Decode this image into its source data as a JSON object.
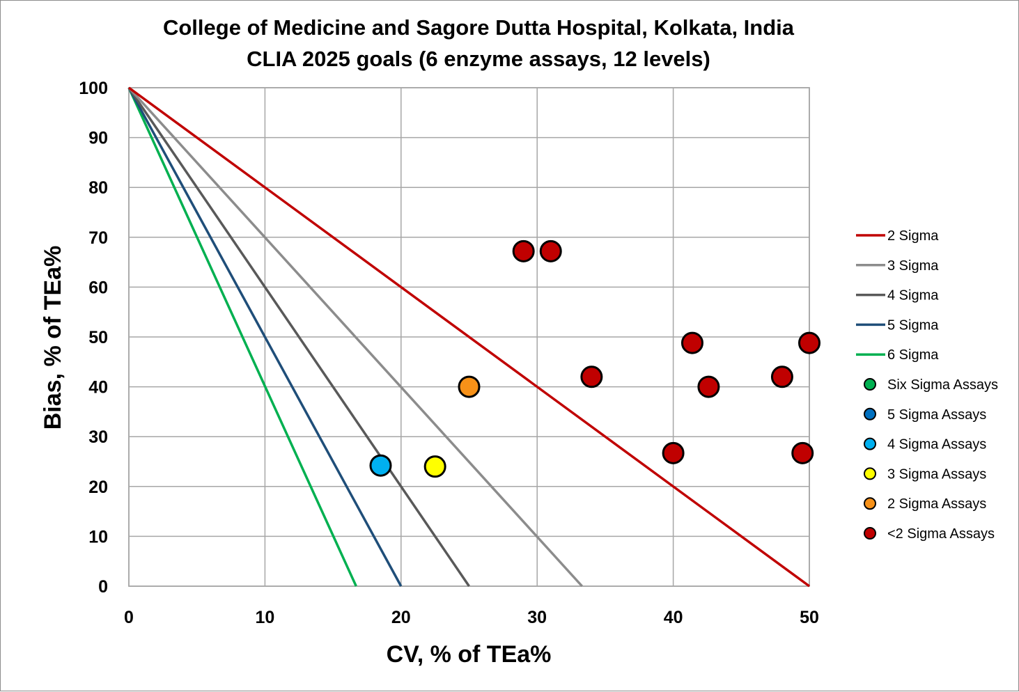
{
  "chart_data": {
    "type": "scatter",
    "title": "College of Medicine and Sagore Dutta Hospital, Kolkata, India",
    "subtitle": "CLIA 2025 goals (6 enzyme assays, 12 levels)",
    "xlabel": "CV, % of TEa%",
    "ylabel": "Bias, % of TEa%",
    "xlim": [
      0,
      50
    ],
    "ylim": [
      0,
      100
    ],
    "xticks": [
      0,
      10,
      20,
      30,
      40,
      50
    ],
    "yticks": [
      0,
      10,
      20,
      30,
      40,
      50,
      60,
      70,
      80,
      90,
      100
    ],
    "grid": true,
    "legend_position": "right",
    "lines": [
      {
        "name": "2 Sigma",
        "color": "#c00000",
        "points": [
          [
            0,
            100
          ],
          [
            50,
            0
          ]
        ]
      },
      {
        "name": "3 Sigma",
        "color": "#8c8c8c",
        "points": [
          [
            0,
            100
          ],
          [
            33.3,
            0
          ]
        ]
      },
      {
        "name": "4 Sigma",
        "color": "#595959",
        "points": [
          [
            0,
            100
          ],
          [
            25,
            0
          ]
        ]
      },
      {
        "name": "5 Sigma",
        "color": "#1f4e79",
        "points": [
          [
            0,
            100
          ],
          [
            20,
            0
          ]
        ]
      },
      {
        "name": "6 Sigma",
        "color": "#00b050",
        "points": [
          [
            0,
            100
          ],
          [
            16.7,
            0
          ]
        ]
      }
    ],
    "series": [
      {
        "name": "Six Sigma Assays",
        "color": "#00b050",
        "points": []
      },
      {
        "name": "5 Sigma Assays",
        "color": "#0070c0",
        "points": []
      },
      {
        "name": "4 Sigma Assays",
        "color": "#00b0f0",
        "points": [
          [
            18.5,
            24.2
          ]
        ]
      },
      {
        "name": "3 Sigma Assays",
        "color": "#ffff00",
        "points": [
          [
            22.5,
            24
          ]
        ]
      },
      {
        "name": "2 Sigma Assays",
        "color": "#f79118",
        "points": [
          [
            25,
            40
          ]
        ]
      },
      {
        "name": "<2 Sigma Assays",
        "color": "#c00000",
        "points": [
          [
            29,
            67.2
          ],
          [
            31,
            67.2
          ],
          [
            41.4,
            48.8
          ],
          [
            50,
            48.8
          ],
          [
            34,
            42
          ],
          [
            42.6,
            40
          ],
          [
            48,
            42
          ],
          [
            40,
            26.7
          ],
          [
            49.5,
            26.7
          ]
        ]
      }
    ]
  }
}
